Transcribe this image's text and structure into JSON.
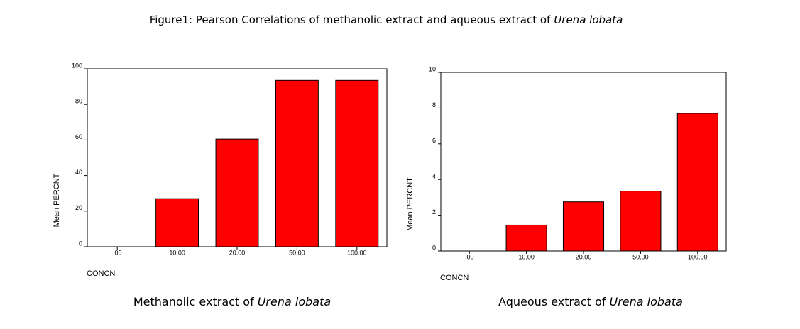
{
  "title": [
    "Figure1: Pearson Correlations of methanolic extract and aqueous extract of",
    "Urena lobata"
  ],
  "chart_data": [
    {
      "type": "bar",
      "caption": [
        "Methanolic extract of",
        "Urena lobata"
      ],
      "categories": [
        ".00",
        "10.00",
        "20.00",
        "50.00",
        "100.00"
      ],
      "values": [
        0,
        27,
        60.5,
        93.5,
        93.5
      ],
      "color": "#ff0000",
      "ylim": [
        0,
        100
      ],
      "yticks": [
        0,
        20,
        40,
        60,
        80,
        100
      ],
      "ylabel": "Mean PERCNT",
      "xlabel": "CONCN"
    },
    {
      "type": "bar",
      "caption": [
        "Aqueous extract of",
        "Urena lobata"
      ],
      "categories": [
        ".00",
        "10.00",
        "20.00",
        "50.00",
        "100.00"
      ],
      "values": [
        0,
        1.45,
        2.75,
        3.35,
        7.7
      ],
      "color": "#ff0000",
      "ylim": [
        0,
        10
      ],
      "yticks": [
        0,
        2,
        4,
        6,
        8,
        10
      ],
      "ylabel": "Mean PERCNT",
      "xlabel": "CONCN"
    }
  ]
}
